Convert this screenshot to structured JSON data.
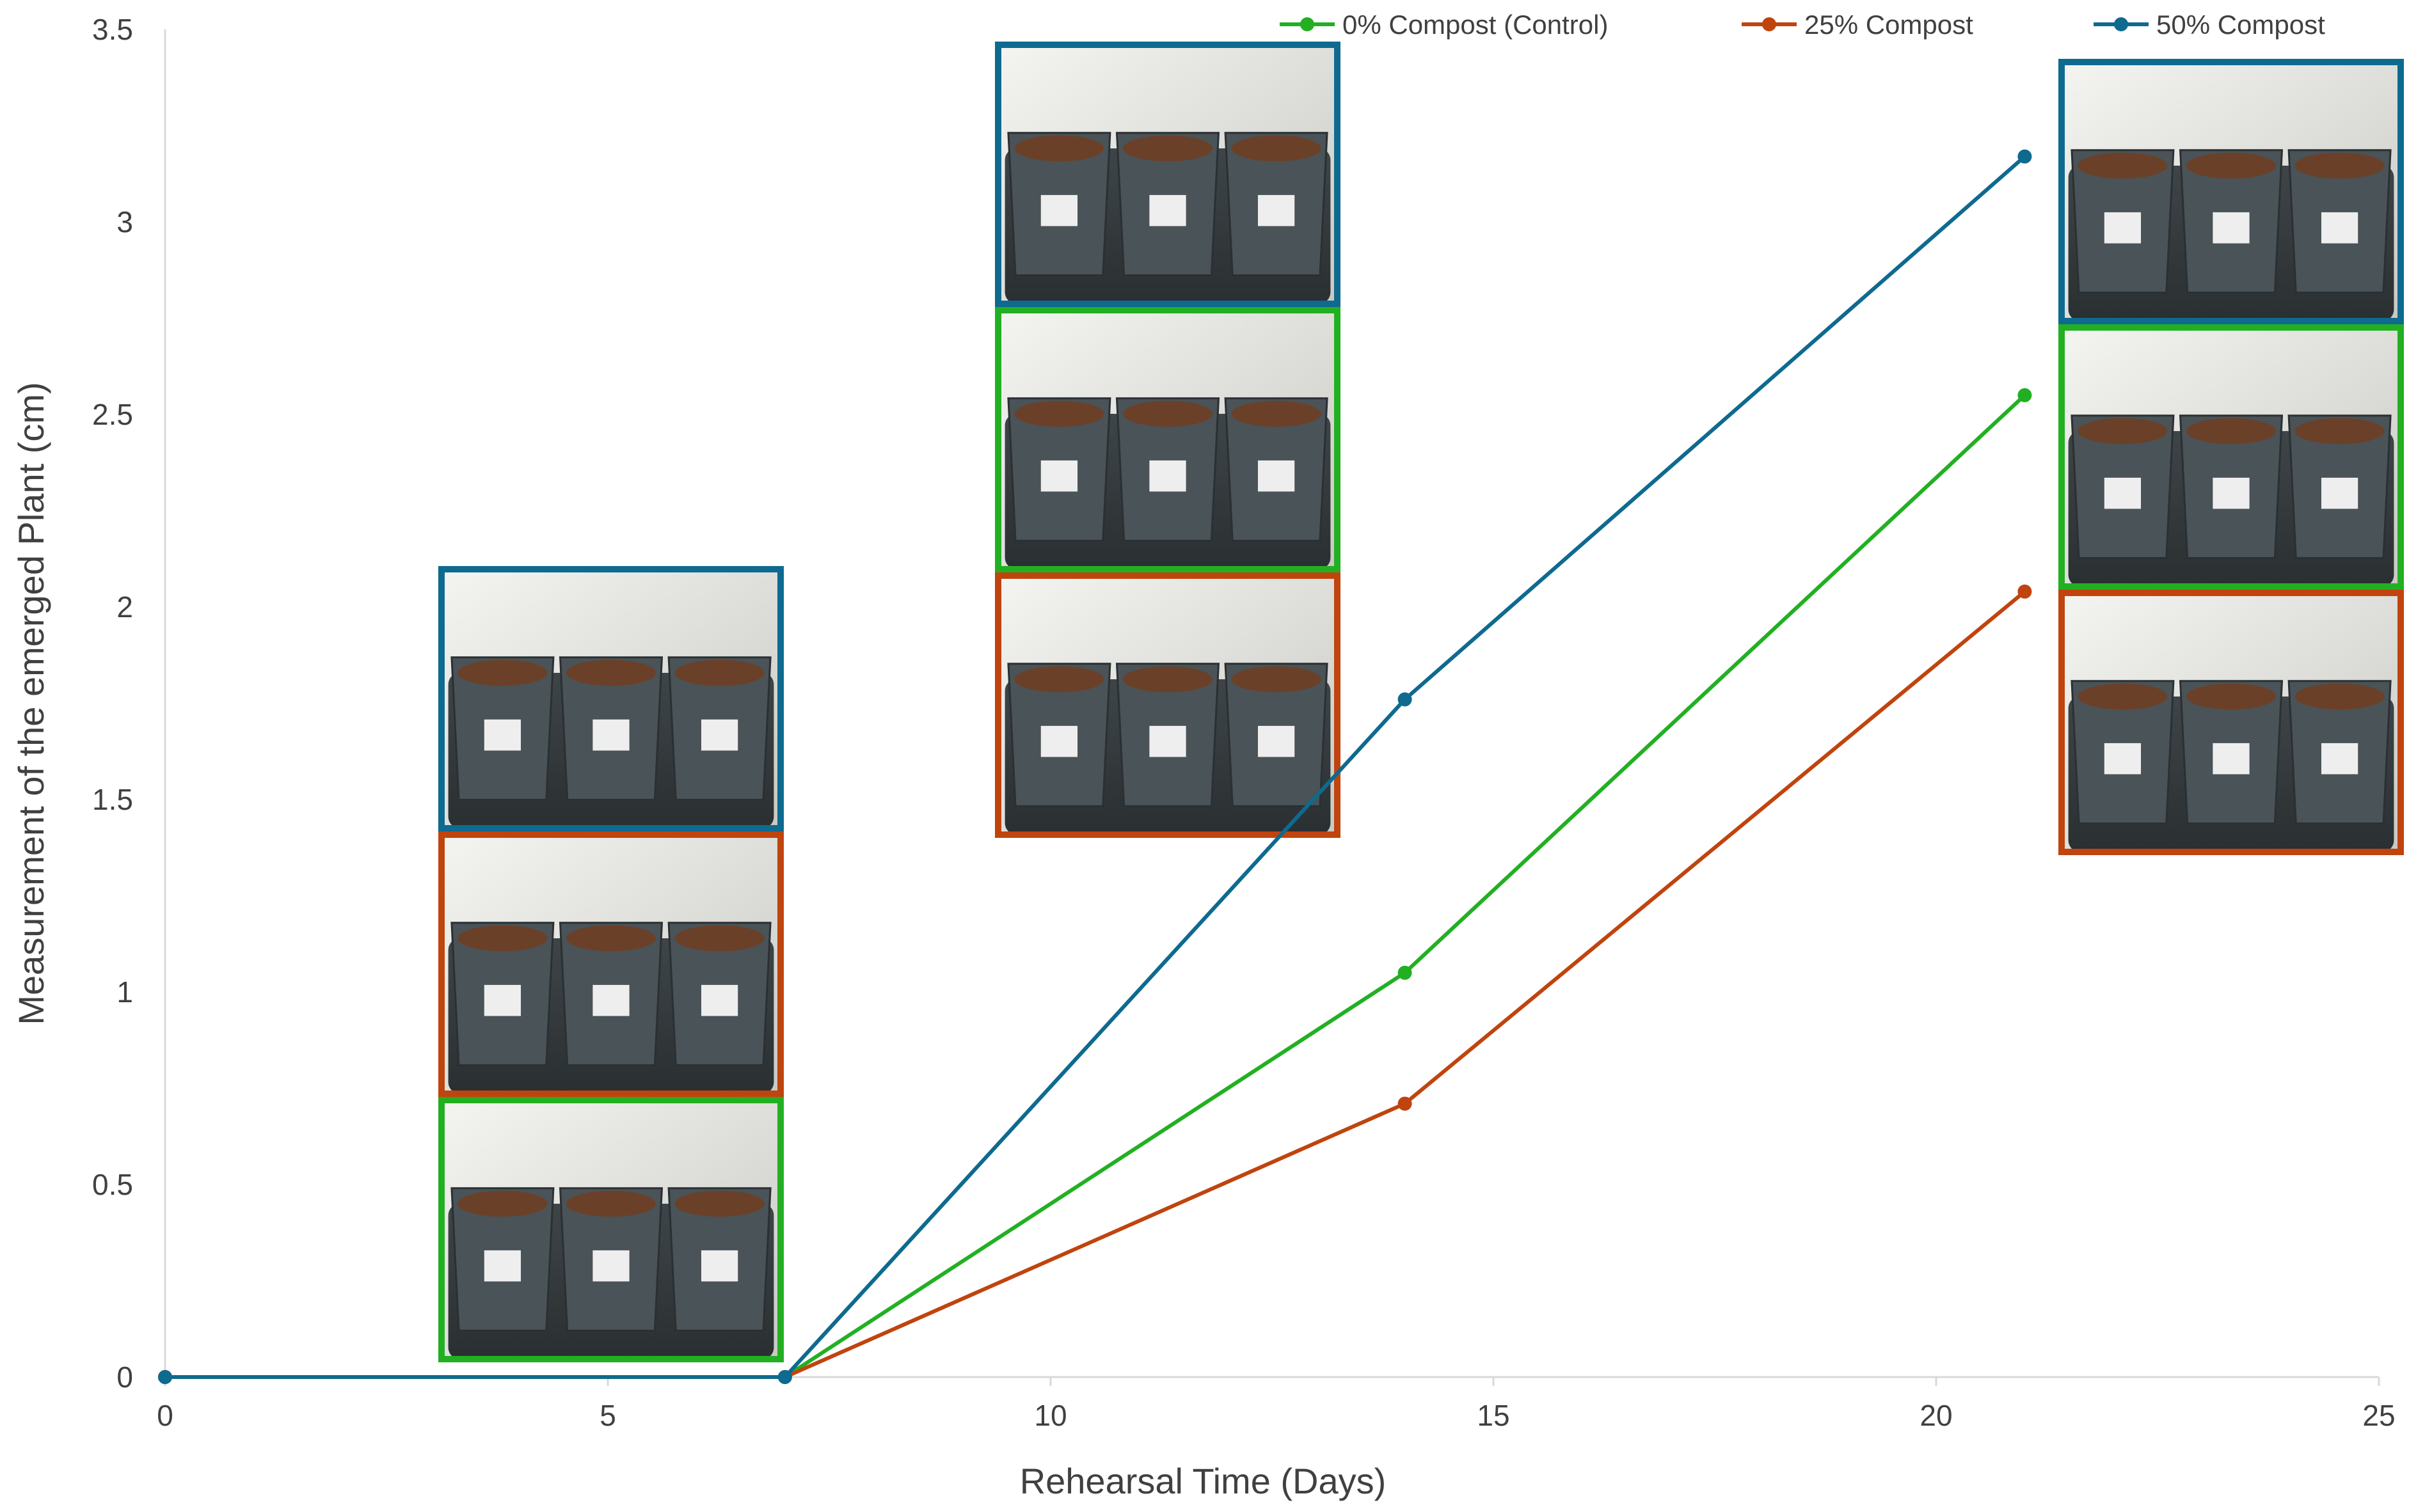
{
  "chart_data": {
    "type": "line",
    "title": "",
    "xlabel": "Rehearsal Time (Days)",
    "ylabel": "Measurement of the emerged Plant (cm)",
    "xlim": [
      0,
      25
    ],
    "ylim": [
      0,
      3.5
    ],
    "x_ticks": [
      0,
      5,
      10,
      15,
      20,
      25
    ],
    "x_tick_labels": [
      "0",
      "5",
      "10",
      "15",
      "20",
      "25"
    ],
    "y_ticks": [
      0,
      0.5,
      1,
      1.5,
      2,
      2.5,
      3,
      3.5
    ],
    "y_tick_labels": [
      "0",
      "0.5",
      "1",
      "1.5",
      "2",
      "2.5",
      "3",
      "3.5"
    ],
    "grid": false,
    "legend_position": "top",
    "series": [
      {
        "name": "0% Compost (Control)",
        "color": "#22b022",
        "x": [
          0,
          7,
          14,
          21
        ],
        "y": [
          0,
          0,
          1.05,
          2.55
        ]
      },
      {
        "name": "25% Compost",
        "color": "#c0440e",
        "x": [
          0,
          7,
          14,
          21
        ],
        "y": [
          0,
          0,
          0.71,
          2.04
        ]
      },
      {
        "name": "50% Compost",
        "color": "#0e6a8f",
        "x": [
          0,
          7,
          14,
          21
        ],
        "y": [
          0,
          0,
          1.76,
          3.17
        ]
      }
    ],
    "photo_groups": [
      {
        "day": 7,
        "frames": [
          {
            "color": "#0e6a8f",
            "treatment": "50% Compost"
          },
          {
            "color": "#c0440e",
            "treatment": "25% Compost"
          },
          {
            "color": "#22b022",
            "treatment": "0% Compost (Control)"
          }
        ]
      },
      {
        "day": 14,
        "frames": [
          {
            "color": "#0e6a8f",
            "treatment": "50% Compost"
          },
          {
            "color": "#22b022",
            "treatment": "0% Compost (Control)"
          },
          {
            "color": "#c0440e",
            "treatment": "25% Compost"
          }
        ]
      },
      {
        "day": 21,
        "frames": [
          {
            "color": "#0e6a8f",
            "treatment": "50% Compost"
          },
          {
            "color": "#22b022",
            "treatment": "0% Compost (Control)"
          },
          {
            "color": "#c0440e",
            "treatment": "25% Compost"
          }
        ]
      }
    ]
  }
}
